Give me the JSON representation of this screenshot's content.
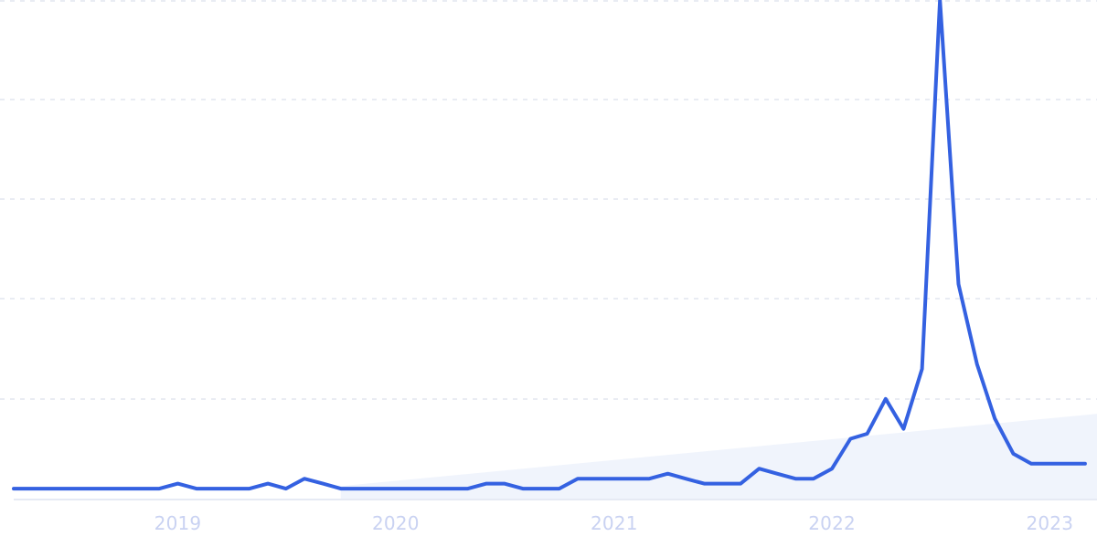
{
  "chart_data": {
    "type": "line",
    "title": "",
    "xlabel": "",
    "ylabel": "",
    "x_tick_labels": [
      "2019",
      "2020",
      "2021",
      "2022",
      "2023"
    ],
    "x_tick_values": [
      "2019-01-01",
      "2020-01-01",
      "2021-01-01",
      "2022-01-01",
      "2023-01-01"
    ],
    "xlim": [
      "2018-04-01",
      "2023-03-15"
    ],
    "ylim": [
      0,
      100
    ],
    "grid": {
      "horizontal": true,
      "style": "dashed"
    },
    "legend": "none",
    "colors": {
      "line": "#3461E1",
      "grid": "#DCE1EC",
      "axis": "#DDE3F0",
      "tick_label": "#C9D2F2",
      "trend_fill": "#EAF0FB"
    },
    "trend_area": {
      "x": [
        "2019-10-01",
        "2023-03-15"
      ],
      "y": [
        2.5,
        17
      ]
    },
    "series": [
      {
        "x": [
          "2018-04-01",
          "2018-05-01",
          "2018-06-01",
          "2018-07-01",
          "2018-08-01",
          "2018-09-01",
          "2018-10-01",
          "2018-11-01",
          "2018-12-01",
          "2019-01-01",
          "2019-02-01",
          "2019-03-01",
          "2019-04-01",
          "2019-05-01",
          "2019-06-01",
          "2019-07-01",
          "2019-08-01",
          "2019-09-01",
          "2019-10-01",
          "2019-11-01",
          "2019-12-01",
          "2020-01-01",
          "2020-02-01",
          "2020-03-01",
          "2020-04-01",
          "2020-05-01",
          "2020-06-01",
          "2020-07-01",
          "2020-08-01",
          "2020-09-01",
          "2020-10-01",
          "2020-11-01",
          "2020-12-01",
          "2021-01-01",
          "2021-02-01",
          "2021-03-01",
          "2021-04-01",
          "2021-05-01",
          "2021-06-01",
          "2021-07-01",
          "2021-08-01",
          "2021-09-01",
          "2021-10-01",
          "2021-11-01",
          "2021-12-01",
          "2022-01-01",
          "2022-02-01",
          "2022-03-01",
          "2022-04-01",
          "2022-05-01",
          "2022-06-01",
          "2022-07-01",
          "2022-08-01",
          "2022-09-01",
          "2022-10-01",
          "2022-11-01",
          "2022-12-01",
          "2023-01-01",
          "2023-02-01",
          "2023-03-01"
        ],
        "y": [
          2,
          2,
          2,
          2,
          2,
          2,
          2,
          2,
          2,
          3,
          2,
          2,
          2,
          2,
          3,
          2,
          4,
          3,
          2,
          2,
          2,
          2,
          2,
          2,
          2,
          2,
          3,
          3,
          2,
          2,
          2,
          4,
          4,
          4,
          4,
          4,
          5,
          4,
          3,
          3,
          3,
          6,
          5,
          4,
          4,
          6,
          12,
          13,
          20,
          14,
          26,
          100,
          43,
          27,
          16,
          9,
          7,
          7,
          7,
          7
        ]
      }
    ]
  }
}
